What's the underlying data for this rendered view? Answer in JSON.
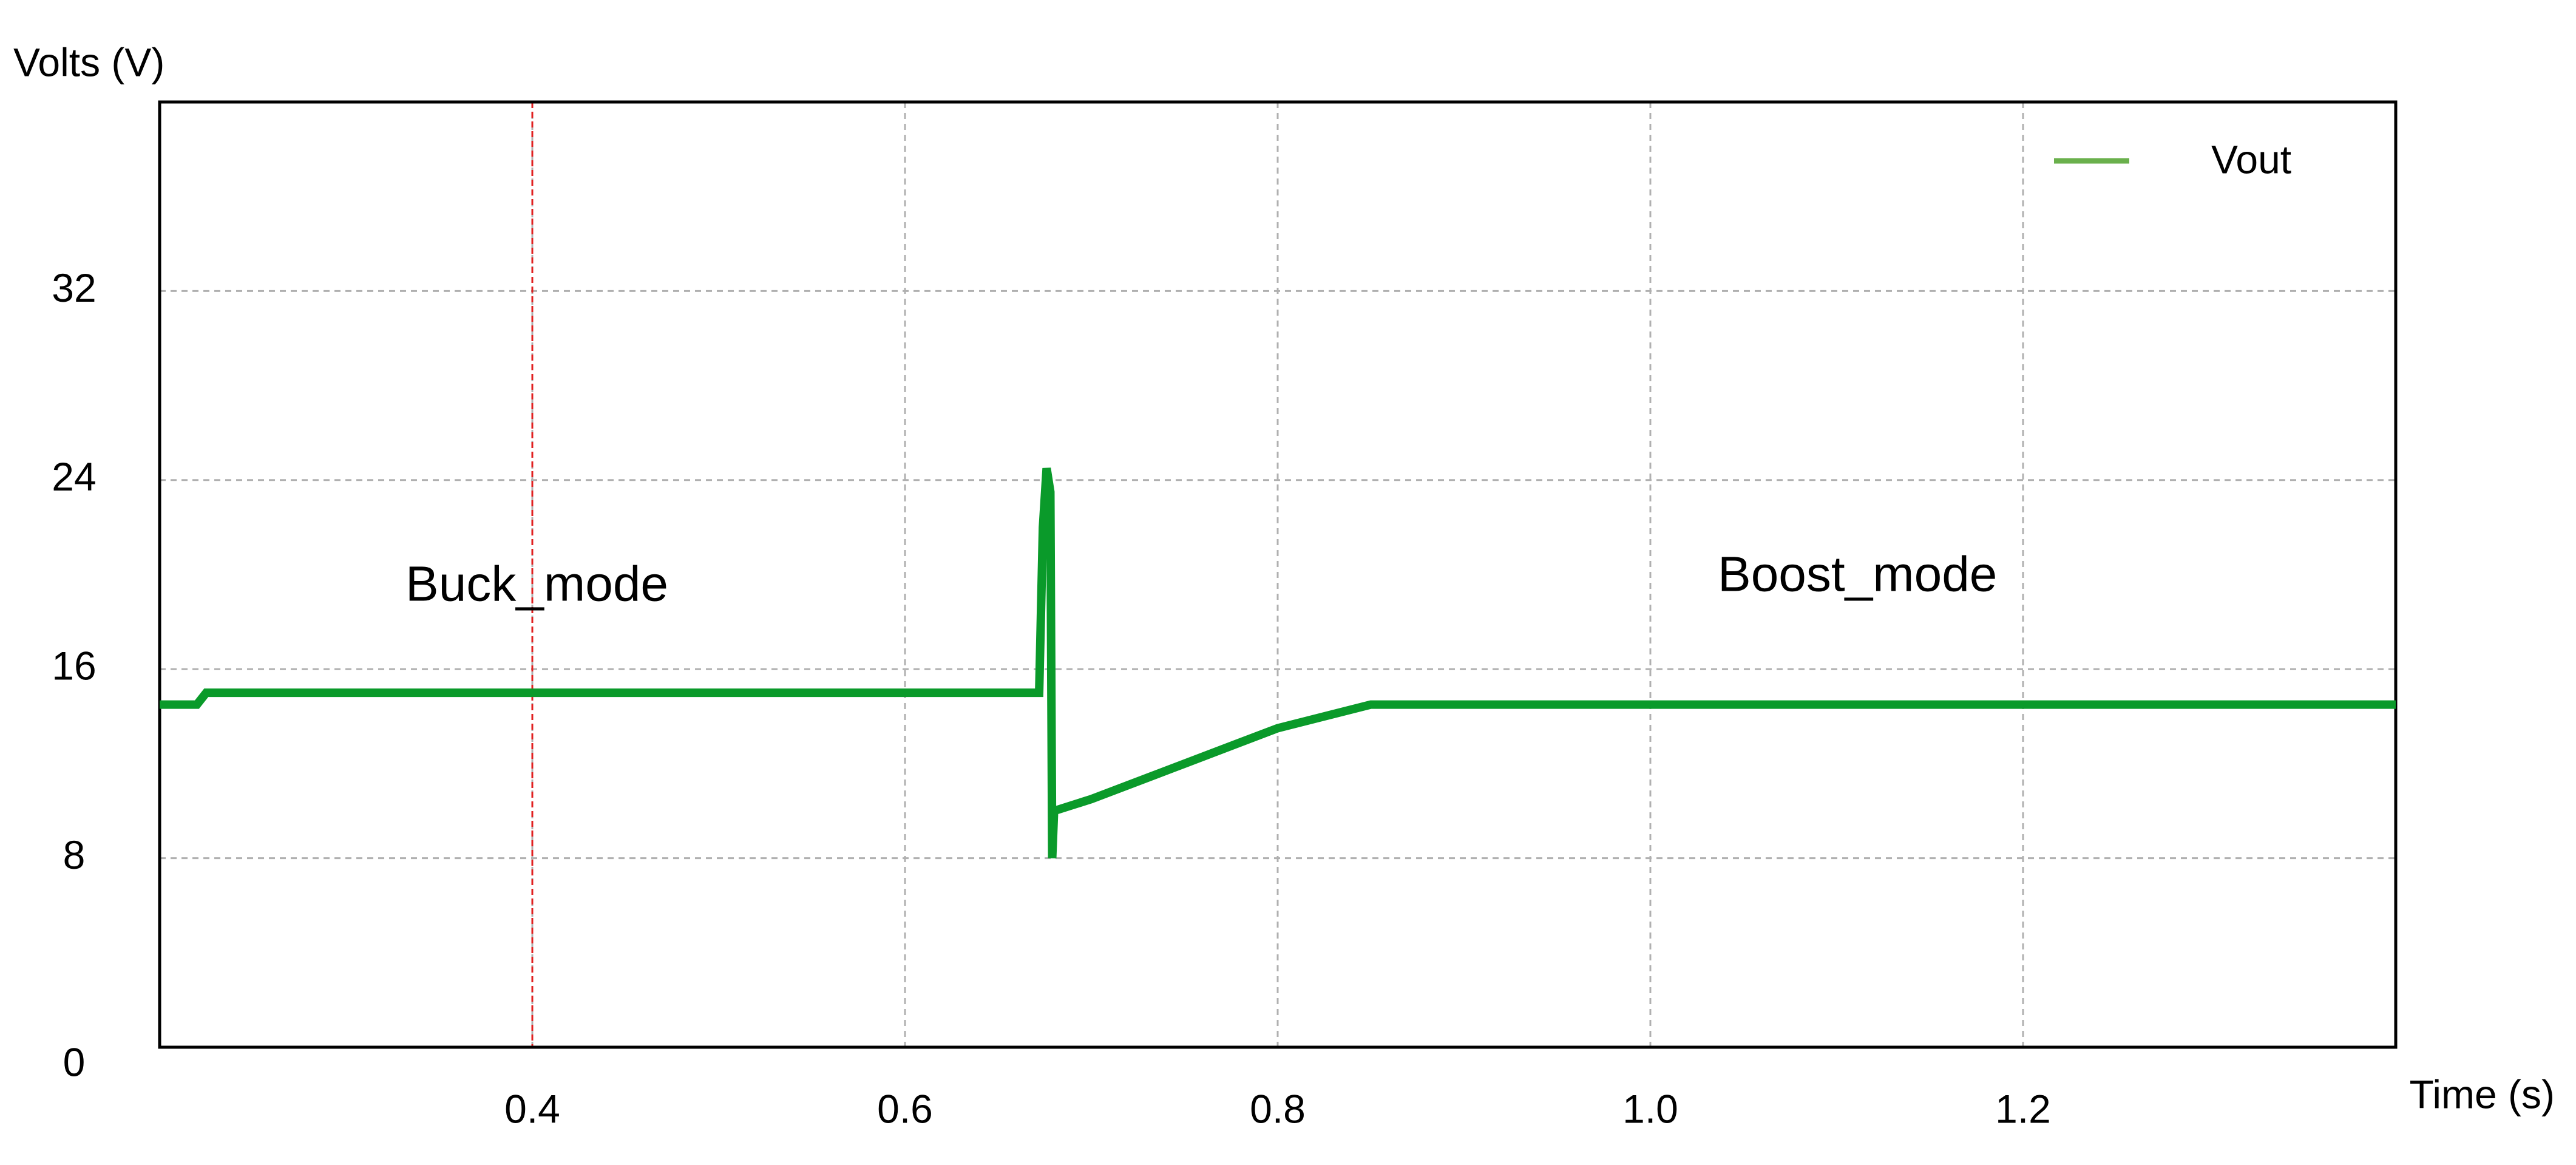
{
  "chart_data": {
    "type": "line",
    "y_label": "Volts (V)",
    "x_label": "Time (s)",
    "annotations": [
      "Buck_mode",
      "Boost_mode"
    ],
    "x": [
      0.2,
      0.22,
      0.225,
      0.3,
      0.5,
      0.672,
      0.674,
      0.676,
      0.678,
      0.679,
      0.68,
      0.7,
      0.75,
      0.8,
      0.85,
      0.87,
      1.0,
      1.2,
      1.4
    ],
    "series": [
      {
        "name": "Vout",
        "color": "#0a9a2a",
        "legend_color": "#6ab04c",
        "values": [
          14.5,
          14.5,
          15,
          15,
          15,
          15,
          22,
          24.5,
          23.5,
          8,
          10,
          10.5,
          12,
          13.5,
          14.5,
          14.5,
          14.5,
          14.5,
          14.5
        ]
      }
    ],
    "cursor": 0.4,
    "cursor_color": "#e02020",
    "xlim": [
      0.2,
      1.4
    ],
    "xticks": [
      0.4,
      0.6,
      0.8,
      {
        "value": 1,
        "label": "1.0"
      },
      1.2
    ],
    "ylim": [
      0,
      40
    ],
    "yticks": [
      0,
      8,
      16,
      24,
      32
    ],
    "grid": true,
    "legend": "upper right"
  }
}
